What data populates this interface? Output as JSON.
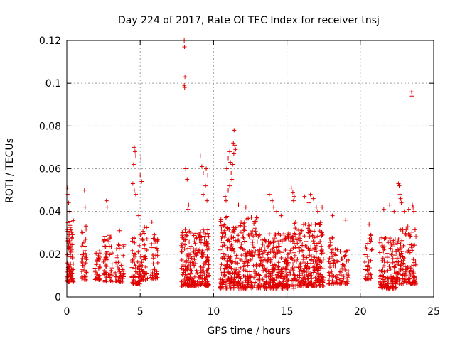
{
  "chart_data": {
    "type": "scatter",
    "title": "Day 224 of 2017, Rate Of TEC Index for receiver tnsj",
    "xlabel": "GPS time / hours",
    "ylabel": "ROTI / TECUs",
    "xlim": [
      0,
      25
    ],
    "ylim": [
      0,
      0.12
    ],
    "grid": true,
    "marker": "plus",
    "color": "#e00000",
    "x_ticks": [
      0,
      5,
      10,
      15,
      20,
      25
    ],
    "x_tick_labels": [
      "0",
      "5",
      "10",
      "15",
      "20",
      "25"
    ],
    "y_ticks": [
      0,
      0.02,
      0.04,
      0.06,
      0.08,
      0.1,
      0.12
    ],
    "y_tick_labels": [
      "0",
      "0.02",
      "0.04",
      "0.06",
      "0.08",
      "0.1",
      "0.12"
    ],
    "clusters": [
      {
        "x_start": 0.0,
        "x_end": 0.45,
        "y_low": 0.007,
        "y_high": 0.036,
        "n": 90
      },
      {
        "x_start": 1.0,
        "x_end": 1.35,
        "y_low": 0.008,
        "y_high": 0.035,
        "n": 40
      },
      {
        "x_start": 1.9,
        "x_end": 2.3,
        "y_low": 0.008,
        "y_high": 0.022,
        "n": 35
      },
      {
        "x_start": 2.5,
        "x_end": 3.1,
        "y_low": 0.007,
        "y_high": 0.029,
        "n": 55
      },
      {
        "x_start": 3.3,
        "x_end": 3.9,
        "y_low": 0.007,
        "y_high": 0.025,
        "n": 45
      },
      {
        "x_start": 4.4,
        "x_end": 5.0,
        "y_low": 0.006,
        "y_high": 0.028,
        "n": 60
      },
      {
        "x_start": 5.0,
        "x_end": 5.5,
        "y_low": 0.008,
        "y_high": 0.035,
        "n": 45
      },
      {
        "x_start": 5.7,
        "x_end": 6.2,
        "y_low": 0.008,
        "y_high": 0.03,
        "n": 40
      },
      {
        "x_start": 7.8,
        "x_end": 9.7,
        "y_low": 0.005,
        "y_high": 0.032,
        "n": 260
      },
      {
        "x_start": 10.4,
        "x_end": 13.0,
        "y_low": 0.004,
        "y_high": 0.038,
        "n": 340
      },
      {
        "x_start": 13.0,
        "x_end": 15.5,
        "y_low": 0.004,
        "y_high": 0.03,
        "n": 300
      },
      {
        "x_start": 15.5,
        "x_end": 17.5,
        "y_low": 0.005,
        "y_high": 0.035,
        "n": 260
      },
      {
        "x_start": 17.8,
        "x_end": 18.5,
        "y_low": 0.006,
        "y_high": 0.028,
        "n": 55
      },
      {
        "x_start": 18.6,
        "x_end": 19.2,
        "y_low": 0.006,
        "y_high": 0.022,
        "n": 45
      },
      {
        "x_start": 20.3,
        "x_end": 20.8,
        "y_low": 0.008,
        "y_high": 0.03,
        "n": 40
      },
      {
        "x_start": 21.3,
        "x_end": 22.5,
        "y_low": 0.004,
        "y_high": 0.028,
        "n": 140
      },
      {
        "x_start": 22.5,
        "x_end": 23.8,
        "y_low": 0.006,
        "y_high": 0.033,
        "n": 130
      }
    ],
    "points": [
      [
        0.05,
        0.051
      ],
      [
        0.08,
        0.048
      ],
      [
        0.12,
        0.044
      ],
      [
        0.2,
        0.04
      ],
      [
        1.2,
        0.05
      ],
      [
        1.25,
        0.042
      ],
      [
        2.7,
        0.045
      ],
      [
        2.75,
        0.042
      ],
      [
        3.6,
        0.031
      ],
      [
        4.6,
        0.07
      ],
      [
        4.65,
        0.068
      ],
      [
        4.7,
        0.066
      ],
      [
        4.55,
        0.062
      ],
      [
        4.5,
        0.053
      ],
      [
        4.6,
        0.05
      ],
      [
        4.7,
        0.048
      ],
      [
        5.0,
        0.057
      ],
      [
        5.05,
        0.065
      ],
      [
        5.1,
        0.054
      ],
      [
        4.9,
        0.038
      ],
      [
        5.8,
        0.035
      ],
      [
        8.0,
        0.12
      ],
      [
        8.02,
        0.117
      ],
      [
        8.05,
        0.103
      ],
      [
        8.0,
        0.099
      ],
      [
        8.03,
        0.098
      ],
      [
        8.1,
        0.06
      ],
      [
        8.2,
        0.055
      ],
      [
        8.3,
        0.043
      ],
      [
        8.25,
        0.041
      ],
      [
        9.1,
        0.066
      ],
      [
        9.2,
        0.061
      ],
      [
        9.3,
        0.058
      ],
      [
        9.5,
        0.06
      ],
      [
        9.6,
        0.057
      ],
      [
        9.45,
        0.052
      ],
      [
        9.3,
        0.048
      ],
      [
        9.55,
        0.045
      ],
      [
        10.9,
        0.06
      ],
      [
        11.0,
        0.065
      ],
      [
        11.1,
        0.068
      ],
      [
        11.15,
        0.063
      ],
      [
        11.2,
        0.058
      ],
      [
        11.35,
        0.072
      ],
      [
        11.4,
        0.078
      ],
      [
        11.45,
        0.071
      ],
      [
        11.5,
        0.069
      ],
      [
        11.38,
        0.067
      ],
      [
        11.3,
        0.062
      ],
      [
        11.25,
        0.055
      ],
      [
        11.1,
        0.052
      ],
      [
        11.0,
        0.05
      ],
      [
        10.8,
        0.047
      ],
      [
        10.85,
        0.045
      ],
      [
        11.7,
        0.043
      ],
      [
        12.2,
        0.042
      ],
      [
        13.8,
        0.048
      ],
      [
        14.0,
        0.045
      ],
      [
        14.1,
        0.042
      ],
      [
        14.3,
        0.04
      ],
      [
        14.6,
        0.038
      ],
      [
        15.3,
        0.051
      ],
      [
        15.4,
        0.049
      ],
      [
        15.5,
        0.047
      ],
      [
        15.45,
        0.045
      ],
      [
        16.2,
        0.047
      ],
      [
        16.6,
        0.048
      ],
      [
        16.8,
        0.046
      ],
      [
        16.5,
        0.044
      ],
      [
        17.0,
        0.042
      ],
      [
        17.1,
        0.04
      ],
      [
        17.4,
        0.042
      ],
      [
        18.1,
        0.038
      ],
      [
        19.0,
        0.036
      ],
      [
        20.6,
        0.034
      ],
      [
        21.6,
        0.041
      ],
      [
        22.0,
        0.043
      ],
      [
        22.3,
        0.04
      ],
      [
        22.6,
        0.053
      ],
      [
        22.65,
        0.052
      ],
      [
        22.7,
        0.048
      ],
      [
        22.75,
        0.046
      ],
      [
        22.8,
        0.044
      ],
      [
        23.0,
        0.04
      ],
      [
        23.3,
        0.041
      ],
      [
        23.5,
        0.096
      ],
      [
        23.52,
        0.094
      ],
      [
        23.55,
        0.043
      ],
      [
        23.6,
        0.042
      ],
      [
        23.65,
        0.04
      ]
    ]
  }
}
